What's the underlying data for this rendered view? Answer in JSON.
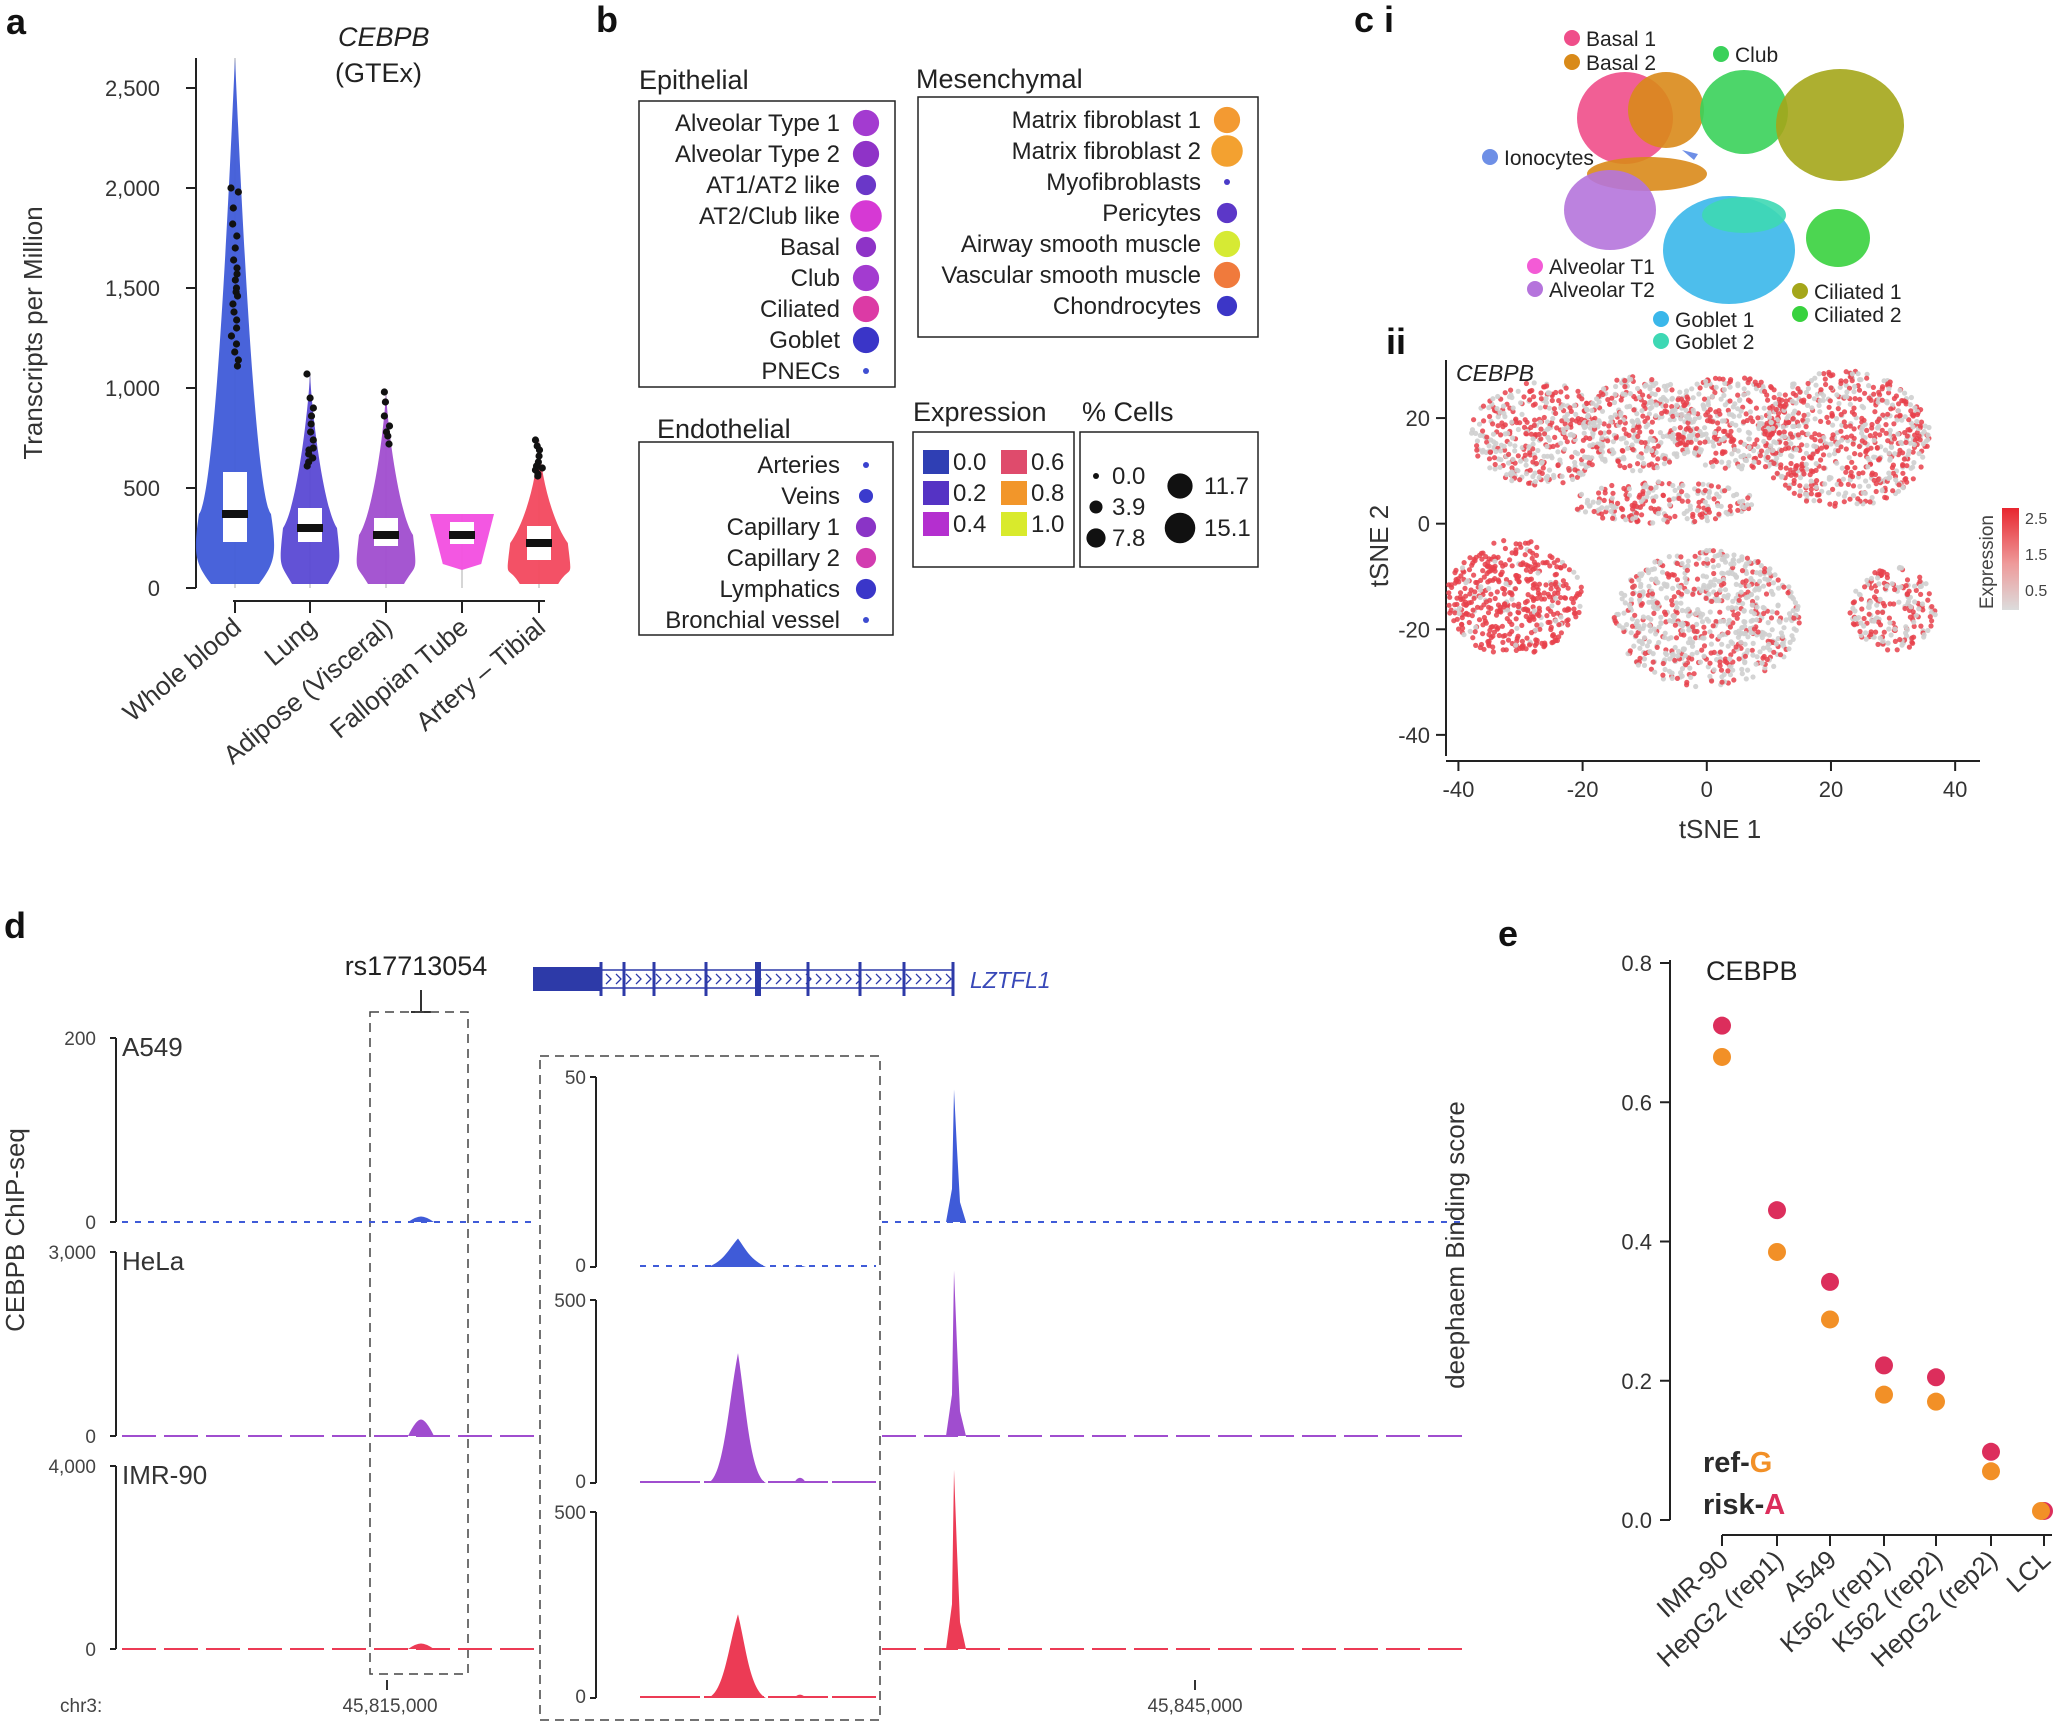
{
  "colors": {
    "expression_scale": [
      "#2f3fb4",
      "#6f2ec4",
      "#b22bd0",
      "#e24a6b",
      "#f2962a",
      "#d8ea2a"
    ],
    "blue": "#3f5bd8",
    "purple": "#a24dd0",
    "magenta": "#e24ad6",
    "red": "#ec3b55",
    "orange": "#f29027",
    "crimson": "#dc2e5c"
  },
  "panel_a": {
    "label": "a",
    "title_gene": "CEBPB",
    "title_source": "(GTEx)",
    "chart_data": {
      "type": "violin",
      "title": "CEBPB (GTEx)",
      "ylabel": "Transcripts per Million",
      "ylim": [
        0,
        2650
      ],
      "yticks": [
        "0",
        "500",
        "1,000",
        "1,500",
        "2,000",
        "2,500"
      ],
      "ytick_values": [
        0,
        500,
        1000,
        1500,
        2000,
        2500
      ],
      "categories": [
        "Whole blood",
        "Lung",
        "Adipose (Visceral)",
        "Fallopian Tube",
        "Artery – Tibial"
      ],
      "series": [
        {
          "name": "Whole blood",
          "color": "#3f5bd8",
          "median": 370,
          "q1": 230,
          "q3": 580,
          "max": 2650,
          "half_width": 40,
          "outliers": [
            2000,
            1980,
            1900,
            1820,
            1760,
            1700,
            1640,
            1600,
            1570,
            1540,
            1500,
            1480,
            1460,
            1420,
            1380,
            1340,
            1300,
            1260,
            1220,
            1180,
            1140,
            1110
          ]
        },
        {
          "name": "Lung",
          "color": "#5a49d4",
          "median": 300,
          "q1": 230,
          "q3": 400,
          "max": 1070,
          "half_width": 30,
          "outliers": [
            1070,
            950,
            900,
            860,
            820,
            780,
            740,
            700,
            690,
            670,
            650,
            630,
            610
          ]
        },
        {
          "name": "Adipose (Visceral)",
          "color": "#a04dcf",
          "median": 265,
          "q1": 210,
          "q3": 350,
          "max": 980,
          "half_width": 30,
          "outliers": [
            980,
            930,
            860,
            810,
            780,
            760,
            720
          ]
        },
        {
          "name": "Fallopian Tube",
          "color": "#f24ee0",
          "median": 265,
          "q1": 220,
          "q3": 330,
          "max": 370,
          "half_width": 32,
          "outliers": []
        },
        {
          "name": "Artery – Tibial",
          "color": "#f2485e",
          "median": 225,
          "q1": 140,
          "q3": 310,
          "max": 740,
          "half_width": 32,
          "outliers": [
            740,
            710,
            690,
            660,
            630,
            610,
            600,
            590,
            570,
            560
          ]
        }
      ]
    }
  },
  "panel_b": {
    "label": "b",
    "chart_data": {
      "type": "dot-legend",
      "groups": [
        {
          "title": "Epithelial",
          "items": [
            {
              "name": "Alveolar Type 1",
              "color": "#a33bd0",
              "pct": 11.7
            },
            {
              "name": "Alveolar Type 2",
              "color": "#8f33c7",
              "pct": 11.7
            },
            {
              "name": "AT1/AT2 like",
              "color": "#6a37c8",
              "pct": 7.8
            },
            {
              "name": "AT2/Club like",
              "color": "#d639d4",
              "pct": 15.1
            },
            {
              "name": "Basal",
              "color": "#8e33c7",
              "pct": 7.8
            },
            {
              "name": "Club",
              "color": "#a33bd0",
              "pct": 11.7
            },
            {
              "name": "Ciliated",
              "color": "#dc3aa5",
              "pct": 11.7
            },
            {
              "name": "Goblet",
              "color": "#3a35c8",
              "pct": 11.7
            },
            {
              "name": "PNECs",
              "color": "#3f4fd2",
              "pct": 0.0
            }
          ]
        },
        {
          "title": "Mesenchymal",
          "items": [
            {
              "name": "Matrix fibroblast 1",
              "color": "#f39a32",
              "pct": 11.7
            },
            {
              "name": "Matrix fibroblast 2",
              "color": "#f3a130",
              "pct": 15.1
            },
            {
              "name": "Myofibroblasts",
              "color": "#4a3bc8",
              "pct": 0.0
            },
            {
              "name": "Pericytes",
              "color": "#5c37c8",
              "pct": 7.8
            },
            {
              "name": "Airway smooth muscle",
              "color": "#d6ea34",
              "pct": 11.7
            },
            {
              "name": "Vascular smooth muscle",
              "color": "#f07a3c",
              "pct": 11.7
            },
            {
              "name": "Chondrocytes",
              "color": "#3c36c7",
              "pct": 7.8
            }
          ]
        },
        {
          "title": "Endothelial",
          "items": [
            {
              "name": "Arteries",
              "color": "#3a42cf",
              "pct": 0.0
            },
            {
              "name": "Veins",
              "color": "#3b3bcd",
              "pct": 3.9
            },
            {
              "name": "Capillary 1",
              "color": "#8a34c6",
              "pct": 7.8
            },
            {
              "name": "Capillary 2",
              "color": "#d23cb0",
              "pct": 7.8
            },
            {
              "name": "Lymphatics",
              "color": "#3a36c9",
              "pct": 7.8
            },
            {
              "name": "Bronchial vessel",
              "color": "#3d4bd0",
              "pct": 0.0
            }
          ]
        }
      ],
      "expression_title": "Expression",
      "expression_levels": [
        {
          "label": "0.0",
          "color": "#2f3fb4"
        },
        {
          "label": "0.2",
          "color": "#5533c4"
        },
        {
          "label": "0.4",
          "color": "#b42fcf"
        },
        {
          "label": "0.6",
          "color": "#df4b6c"
        },
        {
          "label": "0.8",
          "color": "#f2962a"
        },
        {
          "label": "1.0",
          "color": "#d9ea2c"
        }
      ],
      "cells_title": "% Cells",
      "cells_levels": [
        {
          "label": "0.0",
          "value": 0.0
        },
        {
          "label": "3.9",
          "value": 3.9
        },
        {
          "label": "7.8",
          "value": 7.8
        },
        {
          "label": "11.7",
          "value": 11.7
        },
        {
          "label": "15.1",
          "value": 15.1
        }
      ]
    }
  },
  "panel_c": {
    "label_i": "c i",
    "label_ii": "ii",
    "clusters": [
      {
        "name": "Basal 1",
        "color": "#ef4e8a"
      },
      {
        "name": "Basal 2",
        "color": "#d98a19"
      },
      {
        "name": "Club",
        "color": "#3ad15a"
      },
      {
        "name": "Ionocytes",
        "color": "#6e8fe6"
      },
      {
        "name": "Alveolar T1",
        "color": "#f35bd6"
      },
      {
        "name": "Alveolar T2",
        "color": "#b574dc"
      },
      {
        "name": "Goblet 1",
        "color": "#3ab7ea"
      },
      {
        "name": "Goblet 2",
        "color": "#3ed8b4"
      },
      {
        "name": "Ciliated 1",
        "color": "#a4a61a"
      },
      {
        "name": "Ciliated 2",
        "color": "#38d23e"
      }
    ],
    "tsne": {
      "type": "scatter",
      "gene_label": "CEBPB",
      "xlabel": "tSNE 1",
      "ylabel": "tSNE 2",
      "xlim": [
        -42,
        44
      ],
      "ylim": [
        -44,
        31
      ],
      "xticks": [
        -40,
        -20,
        0,
        20,
        40
      ],
      "yticks": [
        20,
        0,
        -20,
        -40
      ],
      "colorbar_title": "Expression",
      "colorbar_ticks": [
        "2.5",
        "1.5",
        "0.5"
      ],
      "colorbar_values": [
        2.5,
        1.5,
        0.5
      ],
      "clusters": [
        {
          "name": "Basal 1",
          "cx": -27,
          "cy": 17,
          "rx": 11,
          "ry": 10,
          "expr": 0.55
        },
        {
          "name": "Basal 2",
          "cx": -11,
          "cy": 19,
          "rx": 9,
          "ry": 9,
          "expr": 0.45
        },
        {
          "name": "Club",
          "cx": 4,
          "cy": 19,
          "rx": 10,
          "ry": 9,
          "expr": 0.5
        },
        {
          "name": "Ciliated 1",
          "cx": 22,
          "cy": 16,
          "rx": 14,
          "ry": 13,
          "expr": 0.55
        },
        {
          "name": "Basal 2",
          "cx": -7,
          "cy": 4,
          "rx": 15,
          "ry": 4,
          "expr": 0.5
        },
        {
          "name": "Alveolar T2",
          "cx": -31,
          "cy": -14,
          "rx": 11,
          "ry": 11,
          "expr": 0.85
        },
        {
          "name": "Goblet 1",
          "cx": 0,
          "cy": -18,
          "rx": 15,
          "ry": 13,
          "expr": 0.35
        },
        {
          "name": "Ciliated 2",
          "cx": 30,
          "cy": -16,
          "rx": 7,
          "ry": 8,
          "expr": 0.55
        }
      ]
    }
  },
  "panel_d": {
    "label": "d",
    "snp_label": "rs17713054",
    "gene_label": "LZTFL1",
    "ylabel": "CEBPB ChIP-seq",
    "chrom_label": "chr3:",
    "xtick_labels": [
      "45,815,000",
      "45,845,000"
    ],
    "tracks": [
      {
        "name": "A549",
        "ymax": "200",
        "ymin": "0",
        "color": "#3f5bd8",
        "inset_max": "50",
        "inset_min": "0",
        "peak_main": 0.72,
        "peak_snp": 0.03,
        "peak_inset": 0.15
      },
      {
        "name": "HeLa",
        "ymax": "3,000",
        "ymin": "0",
        "color": "#a04dcf",
        "inset_max": "500",
        "inset_min": "0",
        "peak_main": 0.9,
        "peak_snp": 0.09,
        "peak_inset": 0.71
      },
      {
        "name": "IMR-90",
        "ymax": "4,000",
        "ymin": "0",
        "color": "#ec3b55",
        "inset_max": "500",
        "inset_min": "0",
        "peak_main": 0.98,
        "peak_snp": 0.03,
        "peak_inset": 0.45
      }
    ]
  },
  "panel_e": {
    "label": "e",
    "title": "CEBPB",
    "legend_ref_prefix": "ref-",
    "legend_ref_allele": "G",
    "legend_risk_prefix": "risk-",
    "legend_risk_allele": "A",
    "chart_data": {
      "type": "scatter",
      "title": "CEBPB",
      "ylabel": "deephaem Binding score",
      "ylim": [
        0.0,
        0.8
      ],
      "yticks": [
        "0.0",
        "0.2",
        "0.4",
        "0.6",
        "0.8"
      ],
      "ytick_values": [
        0.0,
        0.2,
        0.4,
        0.6,
        0.8
      ],
      "categories": [
        "IMR-90",
        "HepG2 (rep1)",
        "A549",
        "K562 (rep1)",
        "K562 (rep2)",
        "HepG2 (rep2)",
        "LCL"
      ],
      "series": [
        {
          "name": "risk-A",
          "color": "#dc2e5c",
          "values": [
            0.71,
            0.445,
            0.342,
            0.222,
            0.205,
            0.098,
            0.013
          ]
        },
        {
          "name": "ref-G",
          "color": "#f29027",
          "values": [
            0.665,
            0.385,
            0.288,
            0.18,
            0.17,
            0.07,
            0.013
          ]
        }
      ]
    }
  }
}
